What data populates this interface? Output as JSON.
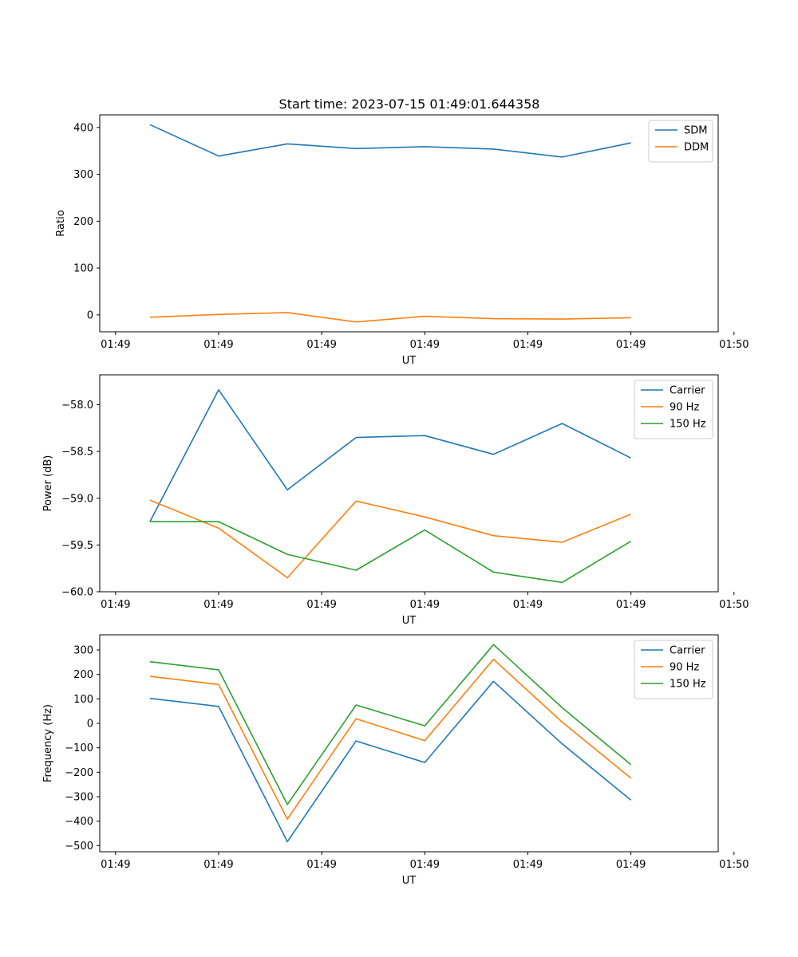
{
  "title": "Start time: 2023-07-15 01:49:01.644358",
  "chart_data": [
    {
      "type": "line",
      "ylabel": "Ratio",
      "xlabel": "UT",
      "x": [
        1,
        2,
        3,
        4,
        5,
        6,
        7,
        8
      ],
      "xlim": [
        0.27,
        9.27
      ],
      "xticks": [
        0.5,
        2.0,
        3.5,
        5.0,
        6.5,
        8.0,
        9.5
      ],
      "xtick_labels": [
        "01:49",
        "01:49",
        "01:49",
        "01:49",
        "01:49",
        "01:49",
        "01:50"
      ],
      "ylim": [
        -36,
        427
      ],
      "yticks": [
        0,
        100,
        200,
        300,
        400
      ],
      "ytick_labels": [
        "0",
        "100",
        "200",
        "300",
        "400"
      ],
      "legend_position": "top-right",
      "series": [
        {
          "name": "SDM",
          "color": "#1f77b4",
          "values": [
            406,
            339,
            365,
            355,
            359,
            354,
            337,
            367
          ]
        },
        {
          "name": "DDM",
          "color": "#ff7f0e",
          "values": [
            -5,
            1,
            5,
            -15,
            -3,
            -8,
            -9,
            -6
          ]
        }
      ]
    },
    {
      "type": "line",
      "ylabel": "Power (dB)",
      "xlabel": "UT",
      "x": [
        1,
        2,
        3,
        4,
        5,
        6,
        7,
        8
      ],
      "xlim": [
        0.27,
        9.27
      ],
      "xticks": [
        0.5,
        2.0,
        3.5,
        5.0,
        6.5,
        8.0,
        9.5
      ],
      "xtick_labels": [
        "01:49",
        "01:49",
        "01:49",
        "01:49",
        "01:49",
        "01:49",
        "01:50"
      ],
      "ylim": [
        -60.0,
        -57.68
      ],
      "yticks": [
        -60.0,
        -59.5,
        -59.0,
        -58.5,
        -58.0
      ],
      "ytick_labels": [
        "−60.0",
        "−59.5",
        "−59.0",
        "−58.5",
        "−58.0"
      ],
      "legend_position": "top-right",
      "series": [
        {
          "name": "Carrier",
          "color": "#1f77b4",
          "values": [
            -59.25,
            -57.84,
            -58.91,
            -58.35,
            -58.33,
            -58.53,
            -58.2,
            -58.57
          ]
        },
        {
          "name": "90 Hz",
          "color": "#ff7f0e",
          "values": [
            -59.02,
            -59.32,
            -59.85,
            -59.03,
            -59.2,
            -59.4,
            -59.47,
            -59.17
          ]
        },
        {
          "name": "150 Hz",
          "color": "#2ca02c",
          "values": [
            -59.25,
            -59.25,
            -59.6,
            -59.77,
            -59.34,
            -59.79,
            -59.9,
            -59.46
          ]
        }
      ]
    },
    {
      "type": "line",
      "ylabel": "Frequency (Hz)",
      "xlabel": "UT",
      "x": [
        1,
        2,
        3,
        4,
        5,
        6,
        7,
        8
      ],
      "xlim": [
        0.27,
        9.27
      ],
      "xticks": [
        0.5,
        2.0,
        3.5,
        5.0,
        6.5,
        8.0,
        9.5
      ],
      "xtick_labels": [
        "01:49",
        "01:49",
        "01:49",
        "01:49",
        "01:49",
        "01:49",
        "01:50"
      ],
      "ylim": [
        -525,
        362
      ],
      "yticks": [
        -500,
        -400,
        -300,
        -200,
        -100,
        0,
        100,
        200,
        300
      ],
      "ytick_labels": [
        "−500",
        "−400",
        "−300",
        "−200",
        "−100",
        "0",
        "100",
        "200",
        "300"
      ],
      "legend_position": "top-right",
      "series": [
        {
          "name": "Carrier",
          "color": "#1f77b4",
          "values": [
            102,
            69,
            -484,
            -72,
            -160,
            172,
            -84,
            -314
          ]
        },
        {
          "name": "90 Hz",
          "color": "#ff7f0e",
          "values": [
            192,
            159,
            -392,
            19,
            -71,
            262,
            5,
            -224
          ]
        },
        {
          "name": "150 Hz",
          "color": "#2ca02c",
          "values": [
            252,
            219,
            -332,
            75,
            -10,
            322,
            64,
            -169
          ]
        }
      ]
    }
  ]
}
